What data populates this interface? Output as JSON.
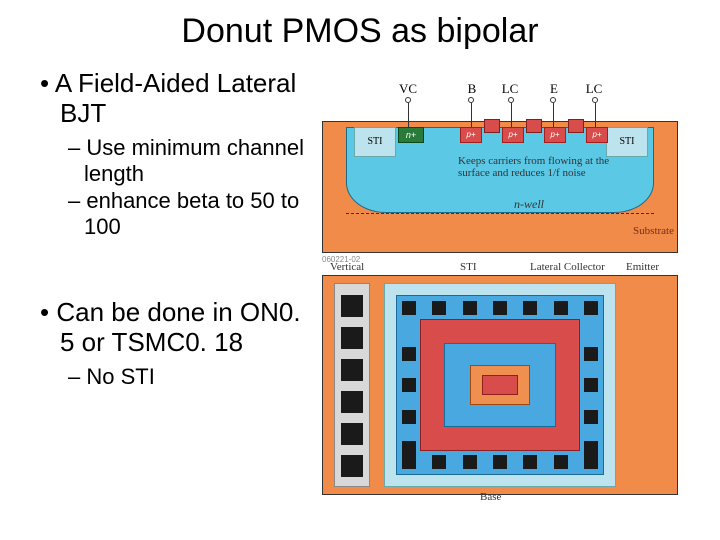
{
  "title": "Donut PMOS as bipolar",
  "bullets": {
    "main1": "A Field-Aided Lateral BJT",
    "sub1": "Use minimum channel length",
    "sub2": "enhance beta to 50 to 100",
    "main2": "Can be done in ON0. 5 or TSMC0. 18",
    "sub3": "No STI"
  },
  "cross_section": {
    "terminals": {
      "vc": "VC",
      "b": "B",
      "lc": "LC",
      "e": "E"
    },
    "regions": {
      "sti": "STI",
      "nplus": "n+",
      "pplus": "p+",
      "nwell": "n-well",
      "substrate": "Substrate"
    },
    "note": "Keeps carriers from flowing at the surface and reduces 1/f noise",
    "fig_id": "060221-02",
    "colors": {
      "substrate": "#f08b4a",
      "nwell": "#5bc8e6",
      "sti": "#bde3ef",
      "nplus": "#2a7a3a",
      "pplus": "#d84c4c"
    }
  },
  "top_view": {
    "labels": {
      "vc": "Vertical Collector",
      "sti": "STI",
      "lc": "Lateral Collector",
      "emitter": "Emitter",
      "base": "Base"
    },
    "colors": {
      "substrate": "#f08b4a",
      "sti": "#bde3ef",
      "base_ring": "#4aa8e0",
      "lc_ring": "#d84c4c",
      "emitter": "#f09050",
      "contact": "#1a1a1a",
      "vc_strip": "#d8d8d8"
    },
    "vc_contacts": 6,
    "base_contacts_per_side": 7
  }
}
